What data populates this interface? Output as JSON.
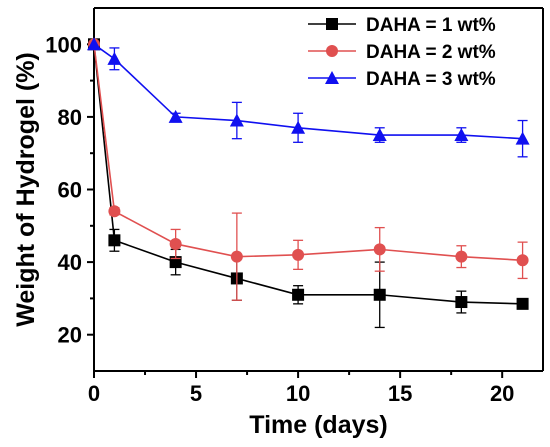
{
  "chart_data": {
    "type": "line",
    "title": "",
    "xlabel": "Time (days)",
    "ylabel": "Weight of Hydrogel (%)",
    "xlim": [
      0,
      22
    ],
    "ylim": [
      10,
      110
    ],
    "xticks": [
      0,
      5,
      10,
      15,
      20
    ],
    "yticks": [
      20,
      40,
      60,
      80,
      100
    ],
    "grid": false,
    "legend_position": "top-right",
    "series": [
      {
        "name": "DAHA = 1 wt%",
        "color": "#000000",
        "marker": "square",
        "x": [
          0,
          1,
          4,
          7,
          10,
          14,
          18,
          21
        ],
        "y": [
          100,
          46,
          40,
          35.5,
          31,
          31,
          29,
          28.5
        ],
        "error": [
          0,
          3,
          3.5,
          6,
          2.5,
          9,
          3,
          1
        ]
      },
      {
        "name": "DAHA = 2 wt%",
        "color": "#e05050",
        "marker": "circle",
        "x": [
          0,
          1,
          4,
          7,
          10,
          14,
          18,
          21
        ],
        "y": [
          100,
          54,
          45,
          41.5,
          42,
          43.5,
          41.5,
          40.5
        ],
        "error": [
          0,
          1,
          4,
          12,
          4,
          6,
          3,
          5
        ]
      },
      {
        "name": "DAHA = 3 wt%",
        "color": "#1010f0",
        "marker": "triangle",
        "x": [
          0,
          1,
          4,
          7,
          10,
          14,
          18,
          21
        ],
        "y": [
          100,
          96,
          80,
          79,
          77,
          75,
          75,
          74
        ],
        "error": [
          0,
          3,
          1,
          5,
          4,
          2,
          2,
          5
        ]
      }
    ]
  }
}
